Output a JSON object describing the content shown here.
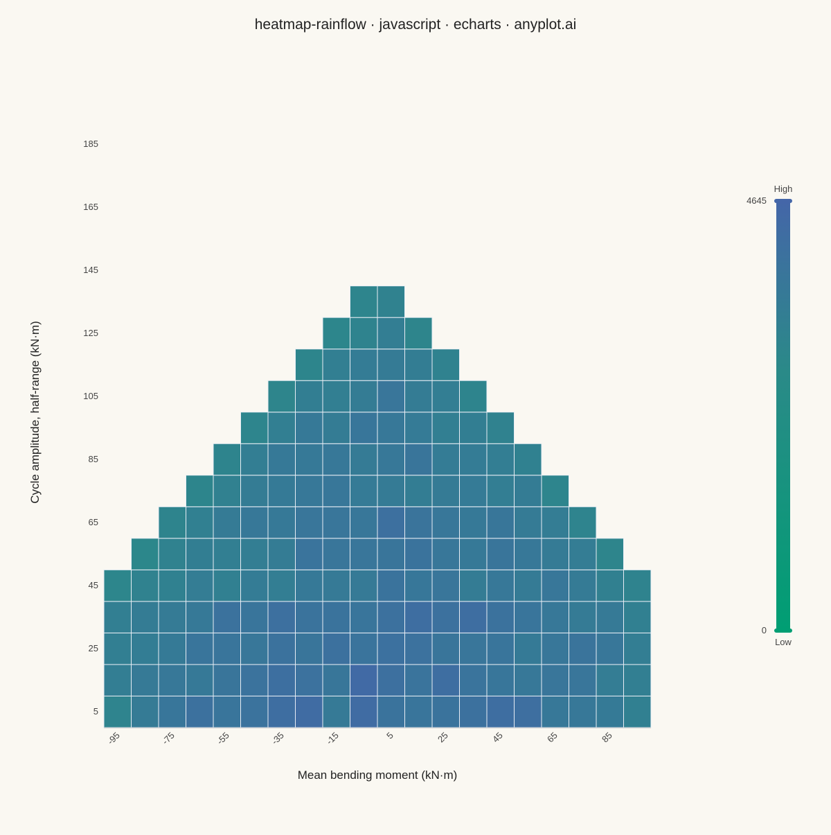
{
  "chart_data": {
    "type": "heatmap",
    "title": "heatmap-rainflow · javascript · echarts · anyplot.ai",
    "xlabel": "Mean bending moment (kN·m)",
    "ylabel": "Cycle amplitude, half-range (kN·m)",
    "x_categories": [
      -95,
      -85,
      -75,
      -65,
      -55,
      -45,
      -35,
      -25,
      -15,
      -5,
      5,
      15,
      25,
      35,
      45,
      55,
      65,
      75,
      85,
      95
    ],
    "y_categories": [
      5,
      15,
      25,
      35,
      45,
      55,
      65,
      75,
      85,
      95,
      105,
      115,
      125,
      135,
      145,
      155,
      165,
      175,
      185
    ],
    "x_tick_labels": [
      "-95",
      "-75",
      "-55",
      "-35",
      "-15",
      "5",
      "25",
      "45",
      "65",
      "85"
    ],
    "y_tick_labels": [
      "5",
      "25",
      "45",
      "65",
      "85",
      "105",
      "125",
      "145",
      "165",
      "185"
    ],
    "cell_rule": "cells exist where amplitude + |mean| <= 140",
    "value_range": [
      0,
      4645
    ],
    "visual_map": {
      "min_label": "0",
      "max_label": "4645",
      "low_text": "Low",
      "high_text": "High",
      "color_low": "#009e73",
      "color_high": "#4466a8"
    },
    "series": [
      {
        "values": [
          [
            3120,
            3560,
            3820,
            4080,
            3880,
            3990,
            4240,
            4360,
            3620,
            4330,
            3960,
            3870,
            3960,
            4080,
            4250,
            4190,
            3700,
            3720,
            3600,
            3310
          ],
          [
            3400,
            3620,
            3700,
            3650,
            3860,
            3980,
            4160,
            4040,
            3800,
            4450,
            4120,
            3920,
            4240,
            3930,
            3810,
            3700,
            3830,
            3830,
            3470,
            3350
          ],
          [
            3370,
            3460,
            3600,
            3870,
            3880,
            3770,
            4020,
            3860,
            4070,
            3920,
            4100,
            4040,
            3860,
            3830,
            3880,
            3600,
            3760,
            3900,
            3770,
            3400
          ],
          [
            3370,
            3510,
            3560,
            3650,
            4000,
            3870,
            4120,
            3960,
            3950,
            3880,
            4060,
            4250,
            4070,
            4250,
            4010,
            3890,
            3740,
            3560,
            3620,
            3310
          ],
          [
            3000,
            3220,
            3230,
            3480,
            3300,
            3530,
            3400,
            3650,
            3620,
            3620,
            3960,
            3750,
            3840,
            3500,
            3740,
            3550,
            3770,
            3570,
            3280,
            3160
          ],
          [
            0,
            2940,
            3220,
            3390,
            3360,
            3410,
            3500,
            3930,
            3840,
            3830,
            3860,
            3960,
            3790,
            3650,
            3850,
            3730,
            3560,
            3480,
            3040,
            0
          ],
          [
            0,
            0,
            3100,
            3310,
            3550,
            3720,
            3640,
            3840,
            3840,
            3770,
            4120,
            3900,
            3780,
            3670,
            3800,
            3540,
            3480,
            3120,
            0,
            0
          ],
          [
            0,
            0,
            0,
            3030,
            3270,
            3510,
            3600,
            3700,
            3780,
            3580,
            3560,
            3440,
            3550,
            3580,
            3420,
            3500,
            3050,
            0,
            0,
            0
          ],
          [
            0,
            0,
            0,
            0,
            3100,
            3400,
            3640,
            3640,
            3710,
            3560,
            3720,
            3850,
            3520,
            3520,
            3400,
            3230,
            0,
            0,
            0,
            0
          ],
          [
            0,
            0,
            0,
            0,
            0,
            3070,
            3340,
            3660,
            3500,
            3810,
            3740,
            3580,
            3350,
            3390,
            3190,
            0,
            0,
            0,
            0,
            0
          ],
          [
            0,
            0,
            0,
            0,
            0,
            0,
            3040,
            3390,
            3350,
            3510,
            3830,
            3510,
            3400,
            3090,
            0,
            0,
            0,
            0,
            0,
            0
          ],
          [
            0,
            0,
            0,
            0,
            0,
            0,
            0,
            3030,
            3340,
            3520,
            3570,
            3440,
            3220,
            0,
            0,
            0,
            0,
            0,
            0,
            0
          ],
          [
            0,
            0,
            0,
            0,
            0,
            0,
            0,
            0,
            3010,
            3150,
            3410,
            3040,
            0,
            0,
            0,
            0,
            0,
            0,
            0,
            0
          ],
          [
            0,
            0,
            0,
            0,
            0,
            0,
            0,
            0,
            0,
            3050,
            3200,
            0,
            0,
            0,
            0,
            0,
            0,
            0,
            0,
            0
          ]
        ]
      }
    ]
  }
}
